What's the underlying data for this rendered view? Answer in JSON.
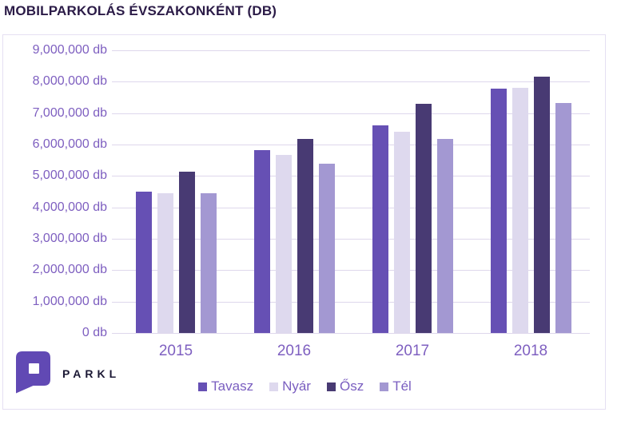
{
  "title": "MOBILPARKOLÁS ÉVSZAKONKÉNT (DB)",
  "logo": {
    "brand": "PARKL",
    "bubble_color": "#6149b4",
    "text_color": "#1b1834"
  },
  "colors": {
    "title": "#2b1b47",
    "axis_label": "#7e5fc0",
    "gridline": "#ded7ec",
    "box_border": "#e5dff2",
    "background": "#ffffff"
  },
  "chart_data": {
    "type": "bar",
    "title": "MOBILPARKOLÁS ÉVSZAKONKÉNT (DB)",
    "categories": [
      "2015",
      "2016",
      "2017",
      "2018"
    ],
    "series": [
      {
        "name": "Tavasz",
        "color": "#6650b4",
        "values": [
          4500000,
          5820000,
          6620000,
          7780000
        ]
      },
      {
        "name": "Nyár",
        "color": "#ded9ee",
        "values": [
          4450000,
          5660000,
          6400000,
          7800000
        ]
      },
      {
        "name": "Ősz",
        "color": "#483a73",
        "values": [
          5130000,
          6170000,
          7290000,
          8170000
        ]
      },
      {
        "name": "Tél",
        "color": "#a398d2",
        "values": [
          4440000,
          5380000,
          6170000,
          7330000
        ]
      }
    ],
    "xlabel": "",
    "ylabel": "",
    "unit": "db",
    "ylim": [
      0,
      9000000
    ],
    "ytick_step": 1000000,
    "ytick_labels": [
      "0 db",
      "1,000,000 db",
      "2,000,000 db",
      "3,000,000 db",
      "4,000,000 db",
      "5,000,000 db",
      "6,000,000 db",
      "7,000,000 db",
      "8,000,000 db",
      "9,000,000 db"
    ],
    "grid": true,
    "legend_position": "bottom"
  }
}
